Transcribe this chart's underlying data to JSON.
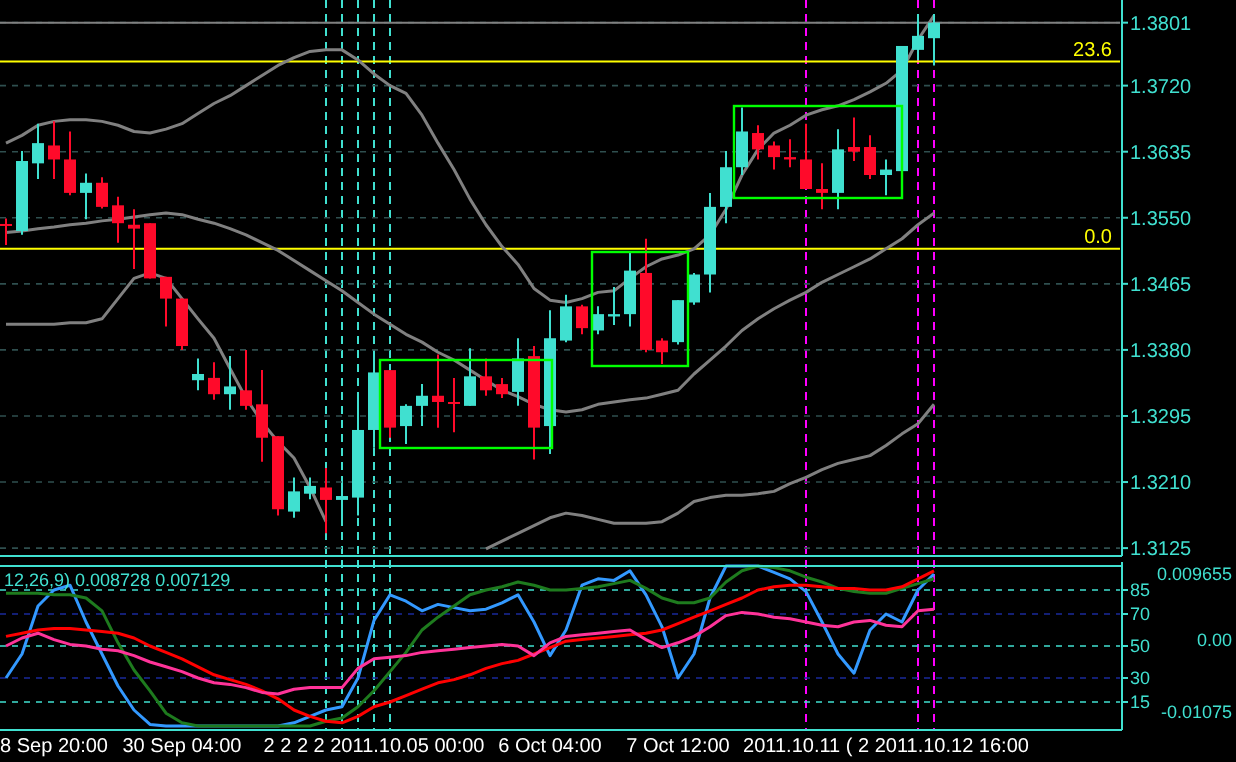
{
  "chart_data": [
    {
      "type": "candlestick",
      "tick_labels": "y",
      "grid": true,
      "categories": [
        null,
        null,
        null,
        null,
        null,
        null,
        null,
        null,
        null,
        null,
        null,
        null,
        null,
        null,
        null,
        null,
        null,
        null,
        null,
        null,
        null,
        null,
        null,
        null,
        null,
        null,
        null,
        null,
        null,
        null,
        null,
        null,
        null,
        null,
        null,
        null,
        null,
        null,
        null,
        null,
        null,
        null,
        null,
        null,
        null,
        null,
        null,
        null,
        null,
        null,
        null,
        null,
        null,
        null,
        null,
        null,
        null,
        null,
        null
      ],
      "annotations": [
        {
          "text": "23.6",
          "y": 1.3751
        },
        {
          "text": "0.0",
          "y": 1.351
        }
      ],
      "ohlc": [
        [
          1.3542,
          1.3549,
          1.3515,
          1.354
        ],
        [
          1.3533,
          1.3636,
          1.3528,
          1.3623
        ],
        [
          1.362,
          1.3671,
          1.36,
          1.3646
        ],
        [
          1.3643,
          1.3674,
          1.36,
          1.3625
        ],
        [
          1.3625,
          1.3661,
          1.3579,
          1.3582
        ],
        [
          1.3582,
          1.3607,
          1.3548,
          1.3595
        ],
        [
          1.3595,
          1.3602,
          1.3562,
          1.3564
        ],
        [
          1.3566,
          1.3577,
          1.3518,
          1.3543
        ],
        [
          1.3541,
          1.3561,
          1.3484,
          1.3536
        ],
        [
          1.3543,
          1.3543,
          1.3472,
          1.3472
        ],
        [
          1.3474,
          1.3474,
          1.341,
          1.3446
        ],
        [
          1.3446,
          1.3446,
          1.338,
          1.3385
        ],
        [
          1.3341,
          1.3369,
          1.3328,
          1.3349
        ],
        [
          1.3344,
          1.3364,
          1.3316,
          1.3323
        ],
        [
          1.3323,
          1.3372,
          1.3303,
          1.3333
        ],
        [
          1.3328,
          1.338,
          1.3303,
          1.3308
        ],
        [
          1.331,
          1.3354,
          1.3236,
          1.3267
        ],
        [
          1.3269,
          1.3269,
          1.3167,
          1.3175
        ],
        [
          1.3172,
          1.3216,
          1.3164,
          1.3198
        ],
        [
          1.3195,
          1.3216,
          1.3188,
          1.3205
        ],
        [
          1.3203,
          1.3228,
          1.3144,
          1.3187
        ],
        [
          1.3187,
          1.3208,
          1.3157,
          1.3192
        ],
        [
          1.319,
          1.3318,
          1.3167,
          1.3277
        ],
        [
          1.3277,
          1.3377,
          1.3254,
          1.3351
        ],
        [
          1.3354,
          1.3354,
          1.3267,
          1.328
        ],
        [
          1.3282,
          1.331,
          1.3259,
          1.3308
        ],
        [
          1.3308,
          1.3336,
          1.3282,
          1.3321
        ],
        [
          1.3321,
          1.3374,
          1.328,
          1.3313
        ],
        [
          1.3313,
          1.3344,
          1.3274,
          1.3311
        ],
        [
          1.3308,
          1.3382,
          1.3308,
          1.3346
        ],
        [
          1.3346,
          1.3369,
          1.3321,
          1.3328
        ],
        [
          1.3336,
          1.3344,
          1.3318,
          1.3323
        ],
        [
          1.3326,
          1.3395,
          1.3308,
          1.3369
        ],
        [
          1.3372,
          1.3385,
          1.3239,
          1.328
        ],
        [
          1.3282,
          1.3431,
          1.3246,
          1.3395
        ],
        [
          1.3392,
          1.3451,
          1.339,
          1.3436
        ],
        [
          1.3436,
          1.3438,
          1.34,
          1.3408
        ],
        [
          1.3405,
          1.3436,
          1.34,
          1.3426
        ],
        [
          1.3423,
          1.3461,
          1.3412,
          1.3426
        ],
        [
          1.3426,
          1.3505,
          1.341,
          1.3482
        ],
        [
          1.3479,
          1.3523,
          1.3377,
          1.338
        ],
        [
          1.3392,
          1.3395,
          1.3362,
          1.3377
        ],
        [
          1.339,
          1.3444,
          1.3387,
          1.3444
        ],
        [
          1.3441,
          1.3479,
          1.3438,
          1.3477
        ],
        [
          1.3477,
          1.3582,
          1.3454,
          1.3564
        ],
        [
          1.3564,
          1.3636,
          1.3543,
          1.3615
        ],
        [
          1.3615,
          1.3692,
          1.3605,
          1.3661
        ],
        [
          1.3659,
          1.3669,
          1.3625,
          1.3638
        ],
        [
          1.3643,
          1.3648,
          1.3612,
          1.3628
        ],
        [
          1.3628,
          1.3651,
          1.3615,
          1.3625
        ],
        [
          1.3625,
          1.3671,
          1.3587,
          1.3587
        ],
        [
          1.3587,
          1.362,
          1.3561,
          1.3582
        ],
        [
          1.3582,
          1.3664,
          1.3561,
          1.3638
        ],
        [
          1.3641,
          1.3679,
          1.3623,
          1.3635
        ],
        [
          1.3641,
          1.3656,
          1.36,
          1.3605
        ],
        [
          1.3605,
          1.3625,
          1.3579,
          1.3612
        ],
        [
          1.361,
          1.3771,
          1.361,
          1.3771
        ],
        [
          1.3766,
          1.3812,
          1.3753,
          1.3784
        ],
        [
          1.3781,
          1.3812,
          1.3746,
          1.3801
        ]
      ],
      "colors": [
        "#ff0a2a",
        "#40e0d0",
        "#40e0d0",
        "#ff0a2a",
        "#ff0a2a",
        "#40e0d0",
        "#ff0a2a",
        "#ff0a2a",
        "#ff0a2a",
        "#ff0a2a",
        "#ff0a2a",
        "#ff0a2a",
        "#40e0d0",
        "#ff0a2a",
        "#40e0d0",
        "#ff0a2a",
        "#ff0a2a",
        "#ff0a2a",
        "#40e0d0",
        "#40e0d0",
        "#ff0a2a",
        "#40e0d0",
        "#40e0d0",
        "#40e0d0",
        "#ff0a2a",
        "#40e0d0",
        "#40e0d0",
        "#ff0a2a",
        "#ff0a2a",
        "#40e0d0",
        "#ff0a2a",
        "#ff0a2a",
        "#40e0d0",
        "#ff0a2a",
        "#40e0d0",
        "#40e0d0",
        "#ff0a2a",
        "#40e0d0",
        "#40e0d0",
        "#40e0d0",
        "#ff0a2a",
        "#ff0a2a",
        "#40e0d0",
        "#40e0d0",
        "#40e0d0",
        "#40e0d0",
        "#40e0d0",
        "#ff0a2a",
        "#ff0a2a",
        "#ff0a2a",
        "#ff0a2a",
        "#ff0a2a",
        "#40e0d0",
        "#ff0a2a",
        "#ff0a2a",
        "#40e0d0",
        "#40e0d0",
        "#40e0d0",
        "#40e0d0"
      ],
      "series": [
        {
          "type": "line",
          "color": "#808080",
          "values": [
            1.3646,
            1.3656,
            1.3669,
            1.3674,
            1.3676,
            1.3676,
            1.3674,
            1.3669,
            1.3661,
            1.3659,
            1.3664,
            1.3671,
            1.3684,
            1.3697,
            1.3707,
            1.372,
            1.3733,
            1.3746,
            1.3756,
            1.3764,
            1.3766,
            1.3766,
            1.3753,
            1.3735,
            1.372,
            1.371,
            1.3682,
            1.3646,
            1.3612,
            1.3574,
            1.3541,
            1.3513,
            1.349,
            1.3459,
            1.3444,
            1.3441,
            1.3446,
            1.3454,
            1.3456,
            1.3472,
            1.3487,
            1.3497,
            1.3502,
            1.351,
            1.3528,
            1.3561,
            1.3605,
            1.3638,
            1.3659,
            1.3669,
            1.3682,
            1.3689,
            1.3694,
            1.3702,
            1.3712,
            1.3723,
            1.374,
            1.3779,
            1.381
          ]
        },
        {
          "type": "line",
          "color": "#808080",
          "values": [
            1.3531,
            1.3533,
            1.3536,
            1.3538,
            1.3541,
            1.3543,
            1.3546,
            1.3548,
            1.3551,
            1.3554,
            1.3556,
            1.3554,
            1.3548,
            1.3543,
            1.3536,
            1.3528,
            1.3518,
            1.3508,
            1.3495,
            1.3482,
            1.3469,
            1.3456,
            1.3441,
            1.3426,
            1.3413,
            1.34,
            1.339,
            1.3377,
            1.3367,
            1.3354,
            1.3341,
            1.3328,
            1.332,
            1.331,
            1.3303,
            1.33,
            1.3303,
            1.331,
            1.3313,
            1.3316,
            1.3318,
            1.3323,
            1.3328,
            1.3349,
            1.3367,
            1.3385,
            1.3405,
            1.342,
            1.3433,
            1.3444,
            1.3454,
            1.3467,
            1.3477,
            1.3487,
            1.3497,
            1.351,
            1.3523,
            1.3541,
            1.3556
          ]
        },
        {
          "type": "line",
          "color": "#808080",
          "values": [
            1.3413,
            1.3413,
            1.3413,
            1.3413,
            1.3415,
            1.3415,
            1.342,
            1.3446,
            1.3472,
            1.3479,
            1.3472,
            1.3446,
            1.342,
            1.3395,
            1.3356,
            1.3318,
            1.3287,
            1.3262,
            1.3241,
            1.3203,
            1.3159,
            null,
            null,
            null,
            null,
            null,
            null,
            null,
            null,
            null,
            1.3124,
            1.3134,
            1.3144,
            1.3154,
            1.3164,
            1.317,
            1.3167,
            1.3162,
            1.3157,
            1.3157,
            1.3157,
            1.3159,
            1.317,
            1.3185,
            1.319,
            1.3193,
            1.3193,
            1.3195,
            1.3198,
            1.3208,
            1.3216,
            1.3226,
            1.3234,
            1.3239,
            1.3244,
            1.3257,
            1.3272,
            1.3285,
            1.331
          ]
        }
      ],
      "ylim": [
        1.312,
        1.3825
      ],
      "yticks": [
        1.3125,
        {
          "value": 1.321,
          "label": "1.3210"
        },
        1.3295,
        {
          "value": 1.338,
          "label": "1.3380"
        },
        1.3465,
        {
          "value": 1.355,
          "label": "1.3550"
        },
        1.3635,
        {
          "value": 1.372,
          "label": "1.3720"
        },
        1.3801
      ],
      "ref_lines": [
        {
          "axis": "y",
          "value": 1.3801,
          "color": "#808080"
        },
        {
          "axis": "y",
          "value": 1.3751,
          "color": "#ffff00"
        },
        {
          "axis": "y",
          "value": 1.351,
          "color": "#ffff00"
        }
      ]
    },
    {
      "type": "line",
      "grid": "y",
      "categories": [
        null,
        null,
        null,
        "8 Sep 20:00",
        null,
        null,
        null,
        null,
        null,
        null,
        null,
        "30 Sep 04:00",
        null,
        null,
        null,
        null,
        null,
        null,
        null,
        null,
        null,
        null,
        null,
        "2 2 2 2 2011.10.05 00:00",
        null,
        null,
        null,
        null,
        null,
        null,
        null,
        null,
        null,
        null,
        "6 Oct 04:00",
        null,
        null,
        null,
        null,
        null,
        null,
        null,
        "7 Oct 12:00",
        null,
        null,
        null,
        null,
        null,
        null,
        null,
        null,
        null,
        null,
        null,
        null,
        "2011.10.11 ( 2 2011.10.12 16:00",
        null,
        null,
        null
      ],
      "series": [
        {
          "color": "#3399ff",
          "values": [
            30,
            45,
            75,
            85,
            88,
            65,
            45,
            25,
            10,
            1,
            0,
            0,
            0,
            0,
            0,
            0,
            0,
            0,
            2,
            6,
            10,
            12,
            30,
            66,
            82,
            78,
            72,
            76,
            74,
            72,
            73,
            77,
            82,
            65,
            44,
            60,
            88,
            92,
            91,
            97,
            82,
            62,
            30,
            45,
            80,
            100,
            100,
            100,
            96,
            92,
            84,
            65,
            45,
            33,
            60,
            70,
            65,
            85,
            95
          ]
        },
        {
          "color": "#1e7b1e",
          "values": [
            83,
            83,
            83,
            82,
            82,
            80,
            72,
            52,
            35,
            22,
            8,
            2,
            0,
            0,
            0,
            0,
            0,
            0,
            0,
            0,
            3,
            5,
            12,
            22,
            34,
            46,
            60,
            68,
            75,
            82,
            85,
            87,
            90,
            88,
            85,
            85,
            86,
            87,
            89,
            91,
            86,
            80,
            77,
            77,
            80,
            90,
            97,
            100,
            99,
            97,
            93,
            90,
            86,
            84,
            83,
            83,
            86,
            89,
            92
          ]
        },
        {
          "color": "#ff0000",
          "values": [
            56,
            58,
            60,
            61,
            61,
            60,
            59,
            58,
            55,
            50,
            46,
            42,
            37,
            32,
            29,
            26,
            22,
            17,
            10,
            6,
            3,
            2,
            6,
            12,
            15,
            19,
            23,
            27,
            29,
            32,
            36,
            39,
            41,
            45,
            49,
            53,
            54,
            55,
            56,
            57,
            58,
            60,
            64,
            68,
            72,
            76,
            80,
            85,
            87,
            88,
            88,
            87,
            86,
            86,
            85,
            85,
            87,
            92,
            97
          ]
        },
        {
          "color": "#ff3399",
          "values": [
            50,
            55,
            58,
            54,
            51,
            50,
            48,
            47,
            44,
            40,
            37,
            34,
            30,
            27,
            26,
            24,
            21,
            20,
            23,
            24,
            24,
            24,
            36,
            42,
            43,
            44,
            46,
            47,
            48,
            49,
            50,
            51,
            50,
            44,
            52,
            56,
            57,
            58,
            59,
            60,
            54,
            49,
            52,
            56,
            62,
            69,
            71,
            70,
            68,
            67,
            65,
            63,
            62,
            65,
            66,
            63,
            62,
            72,
            73
          ]
        }
      ],
      "ylim": [
        0,
        100
      ],
      "yticks": [
        15,
        30,
        50,
        70,
        85
      ],
      "annotations": [
        "12,26,9) 0.008728 0.007129",
        "0.009655",
        "0.00",
        "-0.01075"
      ]
    }
  ]
}
